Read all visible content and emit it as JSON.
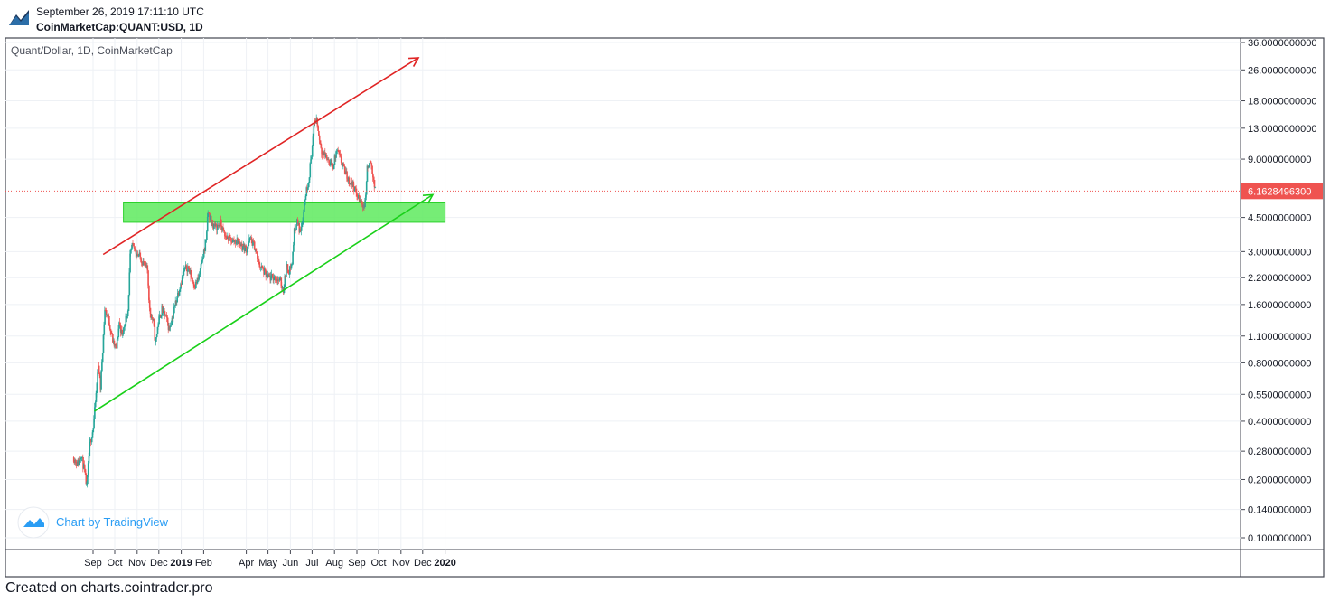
{
  "header": {
    "timestamp": "September 26, 2019 17:11:10 UTC",
    "symbol": "CoinMarketCap:QUANT:USD, 1D"
  },
  "footer": {
    "text": "Created on charts.cointrader.pro"
  },
  "watermark": {
    "text": "Chart by TradingView"
  },
  "chart_data": {
    "type": "candlestick",
    "title": "Quant/Dollar, 1D, CoinMarketCap",
    "y_scale": "log",
    "y_ticks": [
      "36.0000000000",
      "26.0000000000",
      "18.0000000000",
      "13.0000000000",
      "9.0000000000",
      "4.5000000000",
      "3.0000000000",
      "2.2000000000",
      "1.6000000000",
      "1.1000000000",
      "0.8000000000",
      "0.5500000000",
      "0.4000000000",
      "0.2800000000",
      "0.2000000000",
      "0.1400000000",
      "0.1000000000"
    ],
    "x_ticks": [
      {
        "label": "Sep",
        "date": "2018-09-01"
      },
      {
        "label": "Oct",
        "date": "2018-10-01"
      },
      {
        "label": "Nov",
        "date": "2018-11-01"
      },
      {
        "label": "Dec",
        "date": "2018-12-01"
      },
      {
        "label": "2019",
        "date": "2019-01-01"
      },
      {
        "label": "Feb",
        "date": "2019-02-01"
      },
      {
        "label": "Apr",
        "date": "2019-04-01"
      },
      {
        "label": "May",
        "date": "2019-05-01"
      },
      {
        "label": "Jun",
        "date": "2019-06-01"
      },
      {
        "label": "Jul",
        "date": "2019-07-01"
      },
      {
        "label": "Aug",
        "date": "2019-08-01"
      },
      {
        "label": "Sep",
        "date": "2019-09-01"
      },
      {
        "label": "Oct",
        "date": "2019-10-01"
      },
      {
        "label": "Nov",
        "date": "2019-11-01"
      },
      {
        "label": "Dec",
        "date": "2019-12-01"
      },
      {
        "label": "2020",
        "date": "2020-01-01"
      }
    ],
    "last_price": "6.1628496300",
    "price_path": [
      [
        "2018-08-05",
        0.26
      ],
      [
        "2018-08-10",
        0.24
      ],
      [
        "2018-08-15",
        0.27
      ],
      [
        "2018-08-20",
        0.22
      ],
      [
        "2018-08-23",
        0.18
      ],
      [
        "2018-08-27",
        0.3
      ],
      [
        "2018-09-01",
        0.37
      ],
      [
        "2018-09-05",
        0.55
      ],
      [
        "2018-09-08",
        0.8
      ],
      [
        "2018-09-11",
        0.6
      ],
      [
        "2018-09-14",
        0.95
      ],
      [
        "2018-09-17",
        1.5
      ],
      [
        "2018-09-21",
        1.4
      ],
      [
        "2018-09-25",
        1.2
      ],
      [
        "2018-09-29",
        1.0
      ],
      [
        "2018-10-03",
        0.95
      ],
      [
        "2018-10-07",
        1.3
      ],
      [
        "2018-10-11",
        1.1
      ],
      [
        "2018-10-15",
        1.3
      ],
      [
        "2018-10-19",
        1.5
      ],
      [
        "2018-10-22",
        2.8
      ],
      [
        "2018-10-25",
        3.2
      ],
      [
        "2018-10-30",
        3.0
      ],
      [
        "2018-11-05",
        2.8
      ],
      [
        "2018-11-10",
        2.6
      ],
      [
        "2018-11-15",
        2.4
      ],
      [
        "2018-11-18",
        1.5
      ],
      [
        "2018-11-23",
        1.3
      ],
      [
        "2018-11-26",
        1.0
      ],
      [
        "2018-11-30",
        1.3
      ],
      [
        "2018-12-05",
        1.5
      ],
      [
        "2018-12-10",
        1.4
      ],
      [
        "2018-12-15",
        1.2
      ],
      [
        "2018-12-20",
        1.4
      ],
      [
        "2018-12-25",
        1.7
      ],
      [
        "2018-12-30",
        2.0
      ],
      [
        "2019-01-05",
        2.4
      ],
      [
        "2019-01-10",
        2.5
      ],
      [
        "2019-01-15",
        2.2
      ],
      [
        "2019-01-20",
        2.0
      ],
      [
        "2019-01-25",
        2.2
      ],
      [
        "2019-01-30",
        2.7
      ],
      [
        "2019-02-04",
        3.5
      ],
      [
        "2019-02-07",
        4.8
      ],
      [
        "2019-02-12",
        4.2
      ],
      [
        "2019-02-18",
        4.0
      ],
      [
        "2019-02-24",
        4.2
      ],
      [
        "2019-03-02",
        3.6
      ],
      [
        "2019-03-08",
        3.5
      ],
      [
        "2019-03-14",
        3.4
      ],
      [
        "2019-03-20",
        3.4
      ],
      [
        "2019-03-26",
        3.2
      ],
      [
        "2019-04-01",
        3.1
      ],
      [
        "2019-04-06",
        3.5
      ],
      [
        "2019-04-12",
        3.2
      ],
      [
        "2019-04-18",
        2.6
      ],
      [
        "2019-04-24",
        2.4
      ],
      [
        "2019-04-30",
        2.2
      ],
      [
        "2019-05-06",
        2.2
      ],
      [
        "2019-05-12",
        2.2
      ],
      [
        "2019-05-18",
        2.1
      ],
      [
        "2019-05-22",
        1.9
      ],
      [
        "2019-05-26",
        2.5
      ],
      [
        "2019-05-30",
        2.4
      ],
      [
        "2019-06-03",
        2.6
      ],
      [
        "2019-06-06",
        3.8
      ],
      [
        "2019-06-10",
        4.3
      ],
      [
        "2019-06-14",
        3.8
      ],
      [
        "2019-06-18",
        4.5
      ],
      [
        "2019-06-22",
        6.0
      ],
      [
        "2019-06-26",
        7.0
      ],
      [
        "2019-07-01",
        10.5
      ],
      [
        "2019-07-04",
        14.0
      ],
      [
        "2019-07-07",
        14.5
      ],
      [
        "2019-07-10",
        12.0
      ],
      [
        "2019-07-14",
        10.0
      ],
      [
        "2019-07-18",
        9.5
      ],
      [
        "2019-07-24",
        8.8
      ],
      [
        "2019-07-30",
        8.3
      ],
      [
        "2019-08-04",
        10.0
      ],
      [
        "2019-08-09",
        9.0
      ],
      [
        "2019-08-14",
        8.0
      ],
      [
        "2019-08-20",
        7.0
      ],
      [
        "2019-08-27",
        6.6
      ],
      [
        "2019-09-01",
        5.8
      ],
      [
        "2019-09-05",
        5.5
      ],
      [
        "2019-09-10",
        5.2
      ],
      [
        "2019-09-12",
        5.3
      ],
      [
        "2019-09-15",
        8.0
      ],
      [
        "2019-09-19",
        8.6
      ],
      [
        "2019-09-23",
        7.5
      ],
      [
        "2019-09-26",
        6.16
      ]
    ],
    "annotations": [
      {
        "name": "red-trendline",
        "color": "#e02424",
        "from": [
          "2018-09-15",
          2.9
        ],
        "to": [
          "2019-11-25",
          30
        ]
      },
      {
        "name": "green-trendline",
        "color": "#19d019",
        "from": [
          "2018-09-03",
          0.45
        ],
        "to": [
          "2019-12-15",
          5.9
        ]
      },
      {
        "name": "green-support-zone",
        "color": "#5eea5e",
        "date_from": "2018-10-13",
        "date_to": "2020-01-01",
        "y_low": 4.25,
        "y_high": 5.35
      }
    ],
    "colors": {
      "up": "#26a69a",
      "down": "#ef5350",
      "price_label": "#ef5350"
    }
  }
}
